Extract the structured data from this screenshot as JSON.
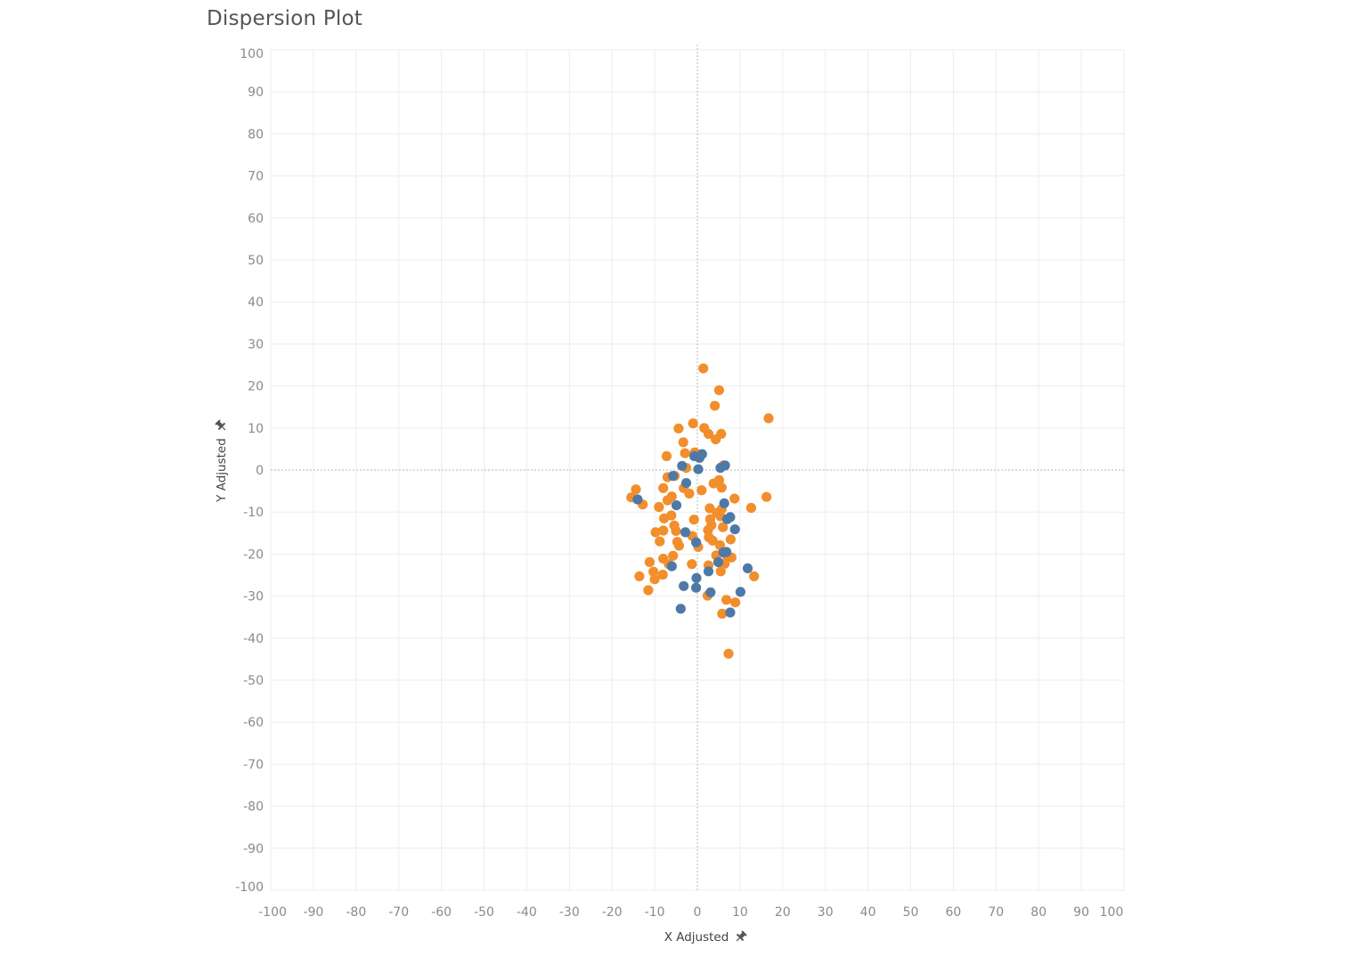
{
  "title": "Dispersion Plot",
  "chart_data": {
    "type": "scatter",
    "title": "Dispersion Plot",
    "xlabel": "X Adjusted",
    "ylabel": "Y Adjusted",
    "xlim": [
      -100,
      100
    ],
    "ylim": [
      -100,
      100
    ],
    "x_ticks": [
      -100,
      -90,
      -80,
      -70,
      -60,
      -50,
      -40,
      -30,
      -20,
      -10,
      0,
      10,
      20,
      30,
      40,
      50,
      60,
      70,
      80,
      90,
      100
    ],
    "y_ticks": [
      100,
      90,
      80,
      70,
      60,
      50,
      40,
      30,
      20,
      10,
      0,
      -10,
      -20,
      -30,
      -40,
      -50,
      -60,
      -70,
      -80,
      -90,
      -100
    ],
    "grid": true,
    "zero_lines": true,
    "axis_pinned_icons": "pin-icon",
    "series": [
      {
        "color": "#F28E2B",
        "points": [
          [
            1.4,
            24.2
          ],
          [
            5.1,
            19.0
          ],
          [
            4.1,
            15.3
          ],
          [
            16.7,
            12.3
          ],
          [
            -1.0,
            11.1
          ],
          [
            -4.4,
            9.9
          ],
          [
            1.6,
            10.0
          ],
          [
            5.6,
            8.6
          ],
          [
            2.6,
            8.6
          ],
          [
            -3.3,
            6.6
          ],
          [
            4.3,
            7.3
          ],
          [
            -7.2,
            3.3
          ],
          [
            -2.9,
            4.0
          ],
          [
            -0.6,
            4.2
          ],
          [
            -2.6,
            0.5
          ],
          [
            -7.0,
            -1.7
          ],
          [
            -5.3,
            -1.4
          ],
          [
            -8.0,
            -4.3
          ],
          [
            -3.2,
            -4.3
          ],
          [
            -1.9,
            -5.6
          ],
          [
            1.0,
            -4.8
          ],
          [
            3.8,
            -3.2
          ],
          [
            5.1,
            -2.4
          ],
          [
            5.7,
            -4.2
          ],
          [
            6.1,
            1.1
          ],
          [
            -14.4,
            -4.6
          ],
          [
            -15.5,
            -6.5
          ],
          [
            -12.8,
            -8.2
          ],
          [
            -6.0,
            -6.3
          ],
          [
            -7.0,
            -7.2
          ],
          [
            -9.0,
            -8.8
          ],
          [
            -7.8,
            -11.5
          ],
          [
            -6.1,
            -10.8
          ],
          [
            -5.4,
            -13.2
          ],
          [
            -5.0,
            -14.5
          ],
          [
            -8.0,
            -14.4
          ],
          [
            -9.8,
            -14.8
          ],
          [
            -8.8,
            -17.0
          ],
          [
            -4.7,
            -17.1
          ],
          [
            -4.3,
            -18.0
          ],
          [
            -1.2,
            -15.7
          ],
          [
            0.2,
            -18.3
          ],
          [
            2.5,
            -14.3
          ],
          [
            3.0,
            -11.7
          ],
          [
            4.6,
            -10.2
          ],
          [
            5.4,
            -11.0
          ],
          [
            3.3,
            -13.1
          ],
          [
            6.0,
            -13.6
          ],
          [
            2.7,
            -16.0
          ],
          [
            3.6,
            -16.8
          ],
          [
            5.3,
            -17.9
          ],
          [
            7.8,
            -16.5
          ],
          [
            2.9,
            -9.1
          ],
          [
            5.7,
            -9.3
          ],
          [
            8.7,
            -6.8
          ],
          [
            12.6,
            -9.0
          ],
          [
            16.2,
            -6.4
          ],
          [
            -0.8,
            -11.8
          ],
          [
            4.4,
            -20.3
          ],
          [
            7.1,
            -20.9
          ],
          [
            6.4,
            -22.3
          ],
          [
            8.0,
            -20.8
          ],
          [
            -1.3,
            -22.4
          ],
          [
            -8.0,
            -21.1
          ],
          [
            -11.2,
            -21.9
          ],
          [
            -10.3,
            -24.2
          ],
          [
            -6.7,
            -22.4
          ],
          [
            -8.1,
            -24.9
          ],
          [
            -10.0,
            -26.0
          ],
          [
            -13.6,
            -25.3
          ],
          [
            -11.5,
            -28.6
          ],
          [
            2.6,
            -22.7
          ],
          [
            5.5,
            -24.1
          ],
          [
            13.3,
            -25.3
          ],
          [
            2.4,
            -29.9
          ],
          [
            6.8,
            -30.9
          ],
          [
            8.9,
            -31.5
          ],
          [
            5.8,
            -34.2
          ],
          [
            7.3,
            -43.7
          ],
          [
            -5.7,
            -20.4
          ]
        ]
      },
      {
        "color": "#4E79A7",
        "points": [
          [
            -0.7,
            3.3
          ],
          [
            0.5,
            2.9
          ],
          [
            1.1,
            3.8
          ],
          [
            -3.6,
            1.0
          ],
          [
            0.2,
            0.2
          ],
          [
            5.4,
            0.5
          ],
          [
            6.5,
            1.1
          ],
          [
            -5.7,
            -1.4
          ],
          [
            -2.6,
            -3.1
          ],
          [
            6.3,
            -7.9
          ],
          [
            -4.9,
            -8.4
          ],
          [
            -14.0,
            -7.0
          ],
          [
            7.0,
            -11.7
          ],
          [
            7.7,
            -11.2
          ],
          [
            8.8,
            -14.1
          ],
          [
            -2.8,
            -14.8
          ],
          [
            -0.3,
            -17.2
          ],
          [
            6.1,
            -19.6
          ],
          [
            6.8,
            -19.5
          ],
          [
            4.9,
            -21.9
          ],
          [
            -6.0,
            -22.9
          ],
          [
            11.8,
            -23.4
          ],
          [
            2.6,
            -24.1
          ],
          [
            -0.2,
            -25.7
          ],
          [
            -3.2,
            -27.6
          ],
          [
            -0.3,
            -28.0
          ],
          [
            3.1,
            -29.1
          ],
          [
            10.1,
            -29.0
          ],
          [
            -3.9,
            -33.0
          ],
          [
            7.7,
            -33.9
          ]
        ]
      }
    ]
  }
}
